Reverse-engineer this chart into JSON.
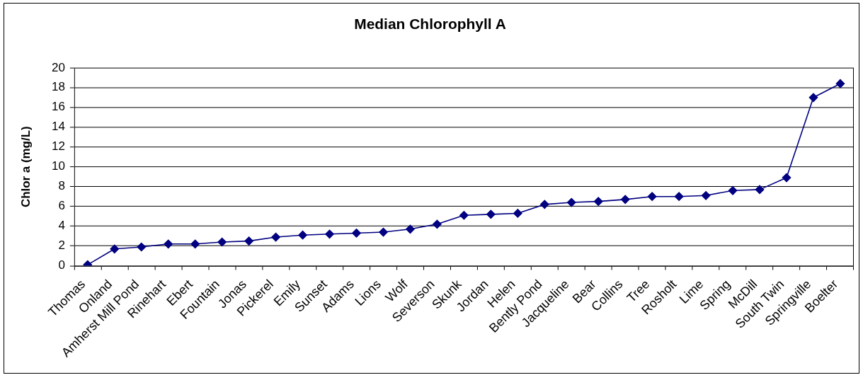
{
  "chart_data": {
    "type": "line",
    "title": "Median Chlorophyll A",
    "ylabel": "Chlor a (mg/L)",
    "categories": [
      "Thomas",
      "Onland",
      "Amherst Mill Pond",
      "Rinehart",
      "Ebert",
      "Fountain",
      "Jonas",
      "Pickerel",
      "Emily",
      "Sunset",
      "Adams",
      "Lions",
      "Wolf",
      "Severson",
      "Skunk",
      "Jordan",
      "Helen",
      "Bently Pond",
      "Jacqueline",
      "Bear",
      "Collins",
      "Tree",
      "Rosholt",
      "Lime",
      "Spring",
      "McDill",
      "South Twin",
      "Springville",
      "Boelter"
    ],
    "series": [
      {
        "color": "#000080",
        "values": [
          0.1,
          1.7,
          1.9,
          2.2,
          2.2,
          2.4,
          2.5,
          2.9,
          3.1,
          3.2,
          3.3,
          3.4,
          3.7,
          4.2,
          5.1,
          5.2,
          5.3,
          6.2,
          6.4,
          6.5,
          6.7,
          7.0,
          7.0,
          7.1,
          7.6,
          7.7,
          8.9,
          17.0,
          18.4
        ]
      }
    ],
    "ylim": [
      0,
      20
    ],
    "yticks": [
      0,
      2,
      4,
      6,
      8,
      10,
      12,
      14,
      16,
      18,
      20
    ],
    "grid": "y",
    "marker": "diamond",
    "line_style": "solid"
  }
}
